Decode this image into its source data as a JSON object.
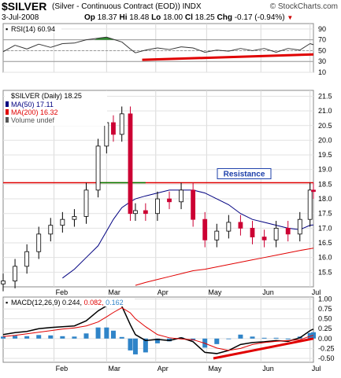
{
  "header": {
    "symbol": "$SILVER",
    "description": "(Silver - Continuous Contract (EOD))",
    "exchange": "INDX",
    "watermark": "© StockCharts.com",
    "date": "3-Jul-2008",
    "quote": {
      "open_label": "Op",
      "open": "18.37",
      "high_label": "Hi",
      "high": "18.48",
      "low_label": "Lo",
      "low": "18.00",
      "close_label": "Cl",
      "close": "18.25",
      "change_label": "Chg",
      "change": "-0.17 (-0.94%)",
      "change_marker": "▼"
    }
  },
  "chart_data": [
    {
      "type": "line",
      "panel": "rsi",
      "title": "RSI(14) 60.94",
      "yticks": [
        10,
        30,
        50,
        70,
        90
      ],
      "ylim": [
        10,
        100
      ],
      "reference_lines": [
        30,
        50,
        70
      ],
      "series": [
        {
          "name": "RSI(14)",
          "color": "#333333",
          "x": [
            "2008-01-02",
            "2008-01-09",
            "2008-01-16",
            "2008-01-23",
            "2008-01-30",
            "2008-02-06",
            "2008-02-13",
            "2008-02-20",
            "2008-02-27",
            "2008-03-03",
            "2008-03-07",
            "2008-03-12",
            "2008-03-17",
            "2008-03-20",
            "2008-03-26",
            "2008-04-02",
            "2008-04-09",
            "2008-04-16",
            "2008-04-23",
            "2008-04-30",
            "2008-05-07",
            "2008-05-14",
            "2008-05-21",
            "2008-05-28",
            "2008-06-04",
            "2008-06-11",
            "2008-06-18",
            "2008-06-25",
            "2008-07-01",
            "2008-07-03"
          ],
          "values": [
            48,
            60,
            53,
            62,
            56,
            63,
            64,
            70,
            73,
            75,
            71,
            66,
            53,
            46,
            51,
            55,
            52,
            57,
            55,
            47,
            51,
            49,
            54,
            50,
            54,
            47,
            54,
            51,
            63,
            61
          ]
        }
      ],
      "annotations": [
        {
          "type": "trendline",
          "color": "#e00000",
          "x": [
            "2008-03-24",
            "2008-07-03"
          ],
          "y": [
            33,
            43
          ]
        }
      ]
    },
    {
      "type": "line",
      "panel": "price",
      "title": "$SILVER (Daily) 18.25",
      "legend": [
        "MA(50) 17.11",
        "MA(200) 16.32",
        "Volume undef"
      ],
      "yticks": [
        15.5,
        16.0,
        16.5,
        17.0,
        17.5,
        18.0,
        18.5,
        19.0,
        19.5,
        20.0,
        20.5,
        21.0,
        21.5
      ],
      "ylim": [
        15.0,
        21.7
      ],
      "x": [
        "2008-01-02",
        "2008-01-09",
        "2008-01-16",
        "2008-01-23",
        "2008-01-30",
        "2008-02-06",
        "2008-02-13",
        "2008-02-20",
        "2008-02-27",
        "2008-03-03",
        "2008-03-07",
        "2008-03-12",
        "2008-03-17",
        "2008-03-20",
        "2008-03-26",
        "2008-04-02",
        "2008-04-09",
        "2008-04-16",
        "2008-04-23",
        "2008-04-30",
        "2008-05-07",
        "2008-05-14",
        "2008-05-21",
        "2008-05-28",
        "2008-06-04",
        "2008-06-11",
        "2008-06-18",
        "2008-06-25",
        "2008-07-01",
        "2008-07-03"
      ],
      "series": [
        {
          "name": "$SILVER",
          "color": "#000000",
          "values": [
            15.2,
            15.7,
            16.2,
            16.8,
            17.1,
            17.3,
            17.4,
            18.3,
            19.8,
            20.6,
            20.2,
            20.9,
            17.5,
            17.6,
            17.5,
            18.0,
            17.9,
            18.3,
            17.3,
            16.6,
            16.9,
            17.2,
            17.0,
            16.7,
            16.6,
            17.0,
            16.8,
            17.3,
            18.3,
            18.25
          ]
        },
        {
          "name": "MA(50)",
          "color": "#000080",
          "values": [
            null,
            null,
            null,
            null,
            null,
            15.3,
            15.6,
            16.0,
            16.4,
            16.9,
            17.3,
            17.7,
            17.9,
            18.0,
            18.1,
            18.2,
            18.3,
            18.3,
            18.3,
            18.2,
            18.0,
            17.8,
            17.5,
            17.3,
            17.2,
            17.1,
            17.0,
            16.95,
            17.1,
            17.11
          ]
        },
        {
          "name": "MA(200)",
          "color": "#e00000",
          "values": [
            null,
            null,
            null,
            null,
            null,
            null,
            null,
            null,
            null,
            null,
            null,
            null,
            null,
            15.05,
            15.15,
            15.25,
            15.35,
            15.45,
            15.55,
            15.6,
            15.68,
            15.76,
            15.84,
            15.92,
            16.0,
            16.08,
            16.16,
            16.24,
            16.3,
            16.32
          ]
        }
      ],
      "annotations": [
        {
          "type": "hline",
          "y": 18.55,
          "color": "#e00000",
          "label": "Resistance"
        },
        {
          "type": "hline_segment",
          "y": 18.55,
          "color": "#008000",
          "x": [
            "2008-02-26",
            "2008-03-26"
          ]
        }
      ]
    },
    {
      "type": "line",
      "panel": "macd",
      "title": "MACD(12,26,9) 0.244, 0.082, 0.162",
      "yticks": [
        -0.5,
        -0.25,
        0.0,
        0.25,
        0.5,
        0.75,
        1.0
      ],
      "ylim": [
        -0.6,
        1.05
      ],
      "x": [
        "2008-01-02",
        "2008-01-09",
        "2008-01-16",
        "2008-01-23",
        "2008-01-30",
        "2008-02-06",
        "2008-02-13",
        "2008-02-20",
        "2008-02-27",
        "2008-03-03",
        "2008-03-07",
        "2008-03-12",
        "2008-03-17",
        "2008-03-20",
        "2008-03-26",
        "2008-04-02",
        "2008-04-09",
        "2008-04-16",
        "2008-04-23",
        "2008-04-30",
        "2008-05-07",
        "2008-05-14",
        "2008-05-21",
        "2008-05-28",
        "2008-06-04",
        "2008-06-11",
        "2008-06-18",
        "2008-06-25",
        "2008-07-01",
        "2008-07-03"
      ],
      "series": [
        {
          "name": "MACD",
          "value_label": "0.244",
          "color": "#000000",
          "values": [
            0.1,
            0.15,
            0.18,
            0.25,
            0.28,
            0.3,
            0.32,
            0.45,
            0.7,
            0.83,
            0.86,
            0.82,
            0.35,
            0.1,
            -0.05,
            -0.02,
            -0.05,
            0.02,
            -0.08,
            -0.35,
            -0.38,
            -0.3,
            -0.15,
            -0.1,
            -0.08,
            -0.05,
            -0.07,
            0.02,
            0.2,
            0.24
          ]
        },
        {
          "name": "Signal",
          "value_label": "0.082",
          "color": "#e00000",
          "values": [
            0.05,
            0.08,
            0.12,
            0.16,
            0.2,
            0.24,
            0.27,
            0.32,
            0.42,
            0.55,
            0.66,
            0.78,
            0.65,
            0.5,
            0.3,
            0.1,
            0.02,
            -0.01,
            -0.03,
            -0.12,
            -0.24,
            -0.3,
            -0.25,
            -0.15,
            -0.1,
            -0.07,
            -0.05,
            -0.03,
            0.06,
            0.08
          ]
        },
        {
          "name": "Histogram",
          "value_label": "0.162",
          "color": "#2f84c8",
          "values": [
            0.05,
            0.07,
            0.06,
            0.09,
            0.08,
            0.06,
            0.05,
            0.13,
            0.28,
            0.28,
            0.2,
            0.04,
            -0.3,
            -0.4,
            -0.35,
            -0.12,
            -0.07,
            0.03,
            -0.05,
            -0.23,
            -0.14,
            0.0,
            0.1,
            0.05,
            0.02,
            0.02,
            -0.02,
            0.05,
            0.14,
            0.16
          ]
        }
      ],
      "annotations": [
        {
          "type": "trendline",
          "color": "#e00000",
          "x": [
            "2008-05-05",
            "2008-07-03"
          ],
          "y": [
            -0.5,
            0.0
          ]
        }
      ]
    }
  ],
  "x_axis": {
    "ticks": [
      {
        "label": "Feb",
        "date": "2008-02-01"
      },
      {
        "label": "Mar",
        "date": "2008-03-03"
      },
      {
        "label": "Apr",
        "date": "2008-04-01"
      },
      {
        "label": "May",
        "date": "2008-05-01"
      },
      {
        "label": "Jun",
        "date": "2008-06-02"
      },
      {
        "label": "Jul",
        "date": "2008-07-01"
      }
    ],
    "start": "2008-01-02",
    "end": "2008-07-03"
  }
}
